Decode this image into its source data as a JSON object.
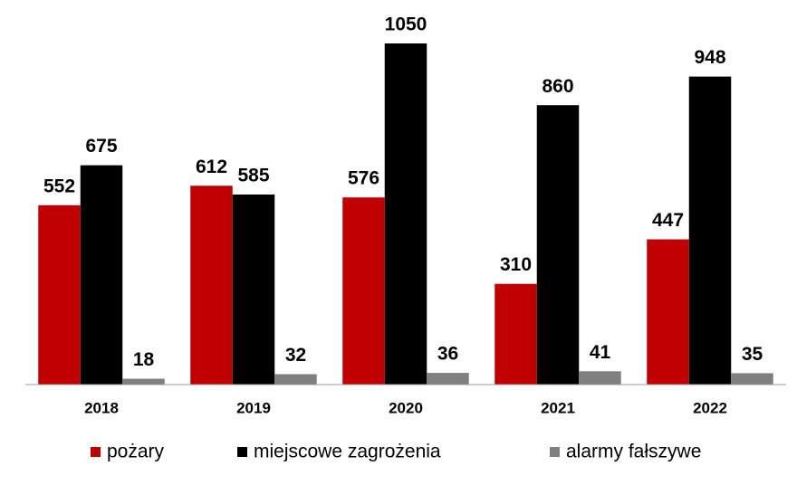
{
  "chart_data": {
    "type": "bar",
    "categories": [
      "2018",
      "2019",
      "2020",
      "2021",
      "2022"
    ],
    "series": [
      {
        "name": "pożary",
        "color": "#c00000",
        "values": [
          552,
          612,
          576,
          310,
          447
        ]
      },
      {
        "name": "miejscowe zagrożenia",
        "color": "#000000",
        "values": [
          675,
          585,
          1050,
          860,
          948
        ]
      },
      {
        "name": "alarmy fałszywe",
        "color": "#808080",
        "values": [
          18,
          32,
          36,
          41,
          35
        ]
      }
    ],
    "legend": "bottom"
  }
}
